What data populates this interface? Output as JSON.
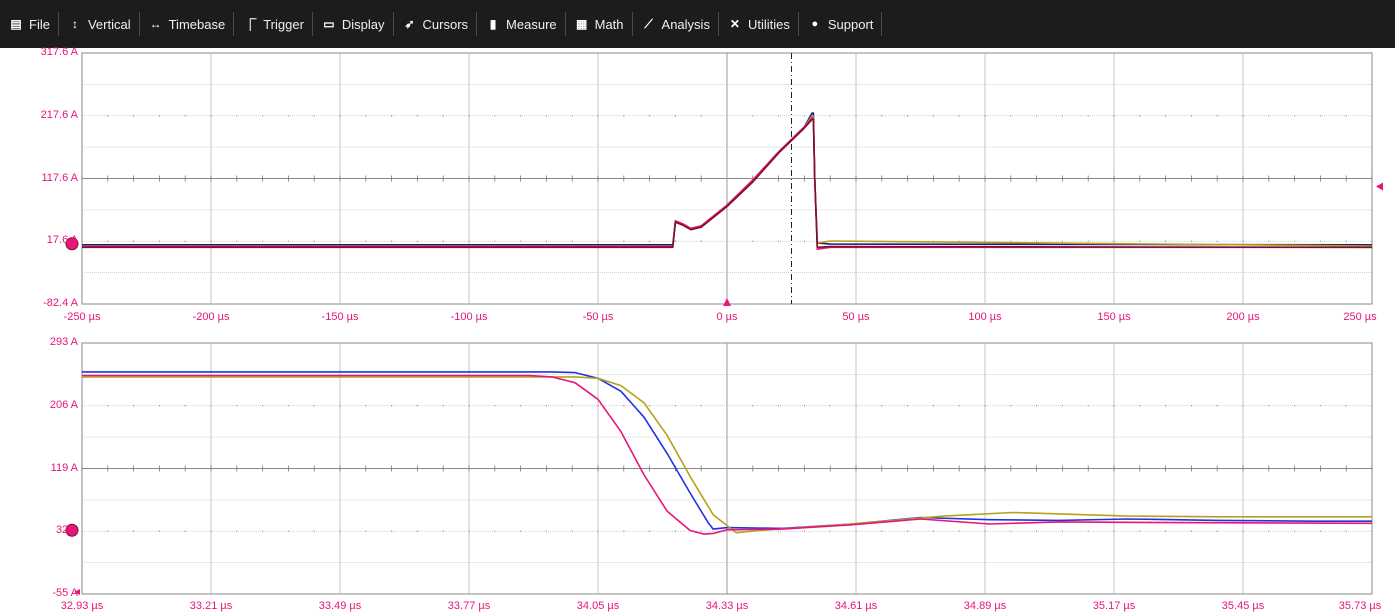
{
  "menu": [
    {
      "label": "File",
      "icon": "file-icon"
    },
    {
      "label": "Vertical",
      "icon": "vertical-arrows-icon"
    },
    {
      "label": "Timebase",
      "icon": "horizontal-arrows-icon"
    },
    {
      "label": "Trigger",
      "icon": "trigger-flag-icon"
    },
    {
      "label": "Display",
      "icon": "display-icon"
    },
    {
      "label": "Cursors",
      "icon": "cursor-pointer-icon"
    },
    {
      "label": "Measure",
      "icon": "measure-icon"
    },
    {
      "label": "Math",
      "icon": "calculator-icon"
    },
    {
      "label": "Analysis",
      "icon": "chart-icon"
    },
    {
      "label": "Utilities",
      "icon": "wrench-icon"
    },
    {
      "label": "Support",
      "icon": "info-icon"
    }
  ],
  "colors": {
    "menubar_bg": "#1c1c1c",
    "tick_label": "#e8157a",
    "grid": "#a0a0a0",
    "trace_navy": "#1a1a8c",
    "trace_blue": "#2233dd",
    "trace_olive": "#b5a21a",
    "trace_magenta": "#e8157a",
    "trace_darkred": "#7a1030"
  },
  "top_panel": {
    "y_labels": [
      "317.6 A",
      "217.6 A",
      "117.6 A",
      "17.6 A",
      "-82.4 A"
    ],
    "x_labels": [
      "-250 µs",
      "-200 µs",
      "-150 µs",
      "-100 µs",
      "-50 µs",
      "0 µs",
      "50 µs",
      "100 µs",
      "150 µs",
      "200 µs",
      "250 µs"
    ],
    "trigger_marker": "trigger-position-marker",
    "cursor_line": "vertical-cursor-line"
  },
  "bottom_panel": {
    "y_labels": [
      "293 A",
      "206 A",
      "119 A",
      "32 A",
      "-55 A"
    ],
    "x_labels": [
      "32.93 µs",
      "33.21 µs",
      "33.49 µs",
      "33.77 µs",
      "34.05 µs",
      "34.33 µs",
      "34.61 µs",
      "34.89 µs",
      "35.17 µs",
      "35.45 µs",
      "35.73 µs"
    ]
  },
  "chart_data": [
    {
      "type": "line",
      "title": "",
      "xlabel": "",
      "ylabel": "",
      "x_unit": "µs",
      "y_unit": "A",
      "xlim": [
        -250,
        250
      ],
      "ylim": [
        -82.4,
        317.6
      ],
      "grid": true,
      "series": [
        {
          "color": "#1a1a8c",
          "x": [
            -250,
            -21.5,
            -21,
            -20,
            -17,
            -14,
            -10,
            0,
            10,
            20,
            30,
            33,
            33.5,
            34,
            35,
            40,
            250
          ],
          "y": [
            12,
            12,
            12,
            50,
            45,
            38,
            42,
            75,
            115,
            160,
            200,
            222,
            222,
            120,
            15,
            13,
            12
          ]
        },
        {
          "color": "#b5a21a",
          "x": [
            -250,
            -21.5,
            -21,
            -20,
            -17,
            -14,
            -10,
            0,
            10,
            20,
            30,
            33,
            33.5,
            34,
            35,
            40,
            250
          ],
          "y": [
            10,
            10,
            10,
            50,
            45,
            38,
            42,
            75,
            115,
            160,
            200,
            217,
            217,
            120,
            15,
            18,
            10
          ]
        },
        {
          "color": "#e8157a",
          "x": [
            -250,
            -21.5,
            -21,
            -20,
            -17,
            -14,
            -10,
            0,
            10,
            20,
            30,
            33,
            33.5,
            34,
            35,
            40,
            250
          ],
          "y": [
            9,
            9,
            9,
            50,
            45,
            38,
            42,
            75,
            115,
            160,
            200,
            214,
            214,
            120,
            5,
            8,
            8
          ]
        },
        {
          "color": "#7a1030",
          "x": [
            -250,
            -21.5,
            -21,
            -20,
            -17,
            -14,
            -10,
            0,
            10,
            20,
            30,
            33,
            33.5,
            34,
            35,
            40,
            250
          ],
          "y": [
            8,
            8,
            8,
            48,
            43,
            36,
            40,
            73,
            112,
            158,
            198,
            212,
            212,
            118,
            8,
            9,
            8
          ]
        }
      ]
    },
    {
      "type": "line",
      "title": "",
      "xlabel": "",
      "ylabel": "",
      "x_unit": "µs",
      "y_unit": "A",
      "xlim": [
        32.93,
        35.73
      ],
      "ylim": [
        -55,
        293
      ],
      "grid": true,
      "series": [
        {
          "color": "#2233dd",
          "x": [
            32.93,
            33.95,
            34.0,
            34.05,
            34.1,
            34.15,
            34.2,
            34.25,
            34.29,
            34.3,
            34.33,
            34.45,
            34.6,
            34.75,
            34.9,
            35.05,
            35.2,
            35.4,
            35.6,
            35.73
          ],
          "y": [
            253,
            253,
            252,
            244,
            226,
            190,
            140,
            85,
            43,
            35,
            37,
            36,
            42,
            51,
            48,
            47,
            49,
            47,
            46,
            46
          ]
        },
        {
          "color": "#b5a21a",
          "x": [
            32.93,
            34.0,
            34.05,
            34.1,
            34.15,
            34.2,
            34.25,
            34.3,
            34.35,
            34.4,
            34.6,
            34.8,
            34.95,
            35.2,
            35.4,
            35.6,
            35.73
          ],
          "y": [
            246,
            246,
            244,
            234,
            210,
            165,
            108,
            55,
            30,
            33,
            42,
            53,
            58,
            53,
            52,
            52,
            52
          ]
        },
        {
          "color": "#e8157a",
          "x": [
            32.93,
            33.9,
            33.95,
            34.0,
            34.05,
            34.1,
            34.15,
            34.2,
            34.25,
            34.28,
            34.3,
            34.33,
            34.45,
            34.6,
            34.75,
            34.9,
            35.05,
            35.3,
            35.73
          ],
          "y": [
            248,
            248,
            246,
            238,
            215,
            170,
            110,
            60,
            33,
            28,
            29,
            34,
            35,
            41,
            49,
            42,
            45,
            44,
            43
          ]
        }
      ]
    }
  ]
}
